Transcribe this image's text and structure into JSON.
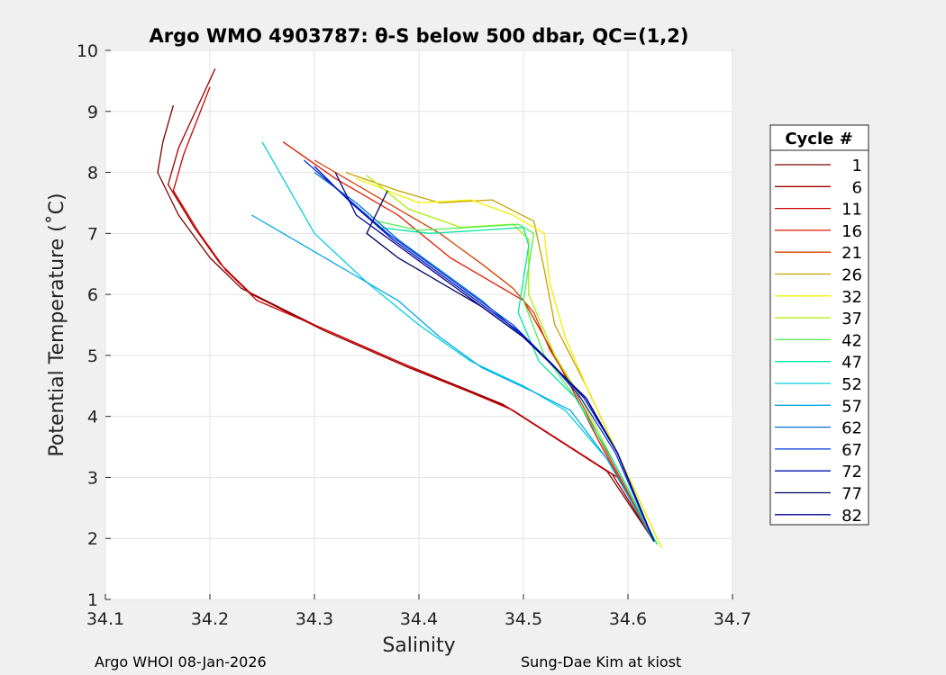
{
  "chart_data": {
    "type": "line",
    "title": "Argo WMO 4903787: θ-S below 500 dbar,  QC=(1,2)",
    "xlabel": "Salinity",
    "ylabel": "Potential Temperature (˚C)",
    "xlim": [
      34.1,
      34.7
    ],
    "ylim": [
      1,
      10
    ],
    "x_ticks": [
      "34.1",
      "34.2",
      "34.3",
      "34.4",
      "34.5",
      "34.6",
      "34.7"
    ],
    "y_ticks": [
      "1",
      "2",
      "3",
      "4",
      "5",
      "6",
      "7",
      "8",
      "9",
      "10"
    ],
    "grid": true,
    "legend_title": "Cycle #",
    "legend_position": "outside-right",
    "series": [
      {
        "name": "1",
        "color": "#7a0000",
        "x": [
          34.165,
          34.155,
          34.15,
          34.17,
          34.2,
          34.23,
          34.3,
          34.38,
          34.48,
          34.58,
          34.625
        ],
        "y": [
          9.1,
          8.5,
          8.0,
          7.3,
          6.6,
          6.1,
          5.5,
          4.9,
          4.2,
          3.1,
          1.95
        ]
      },
      {
        "name": "6",
        "color": "#a00000",
        "x": [
          34.205,
          34.17,
          34.16,
          34.185,
          34.21,
          34.24,
          34.31,
          34.39,
          34.485,
          34.585,
          34.625
        ],
        "y": [
          9.7,
          8.4,
          7.8,
          7.1,
          6.5,
          6.0,
          5.4,
          4.8,
          4.15,
          3.05,
          1.95
        ]
      },
      {
        "name": "11",
        "color": "#d00000",
        "x": [
          34.2,
          34.175,
          34.165,
          34.19,
          34.215,
          34.245,
          34.32,
          34.4,
          34.49,
          34.59,
          34.625
        ],
        "y": [
          9.4,
          8.3,
          7.7,
          7.0,
          6.4,
          5.9,
          5.35,
          4.75,
          4.1,
          3.0,
          1.95
        ]
      },
      {
        "name": "16",
        "color": "#e01800",
        "x": [
          34.27,
          34.32,
          34.38,
          34.43,
          34.47,
          34.5,
          34.52,
          34.545,
          34.575,
          34.625
        ],
        "y": [
          8.5,
          7.9,
          7.3,
          6.6,
          6.2,
          5.9,
          5.3,
          4.5,
          3.5,
          1.95
        ]
      },
      {
        "name": "21",
        "color": "#d44000",
        "x": [
          34.3,
          34.36,
          34.42,
          34.46,
          34.49,
          34.51,
          34.525,
          34.55,
          34.58,
          34.625
        ],
        "y": [
          8.2,
          7.6,
          7.0,
          6.5,
          6.1,
          5.7,
          5.1,
          4.4,
          3.4,
          1.95
        ]
      },
      {
        "name": "26",
        "color": "#c8a000",
        "x": [
          34.33,
          34.38,
          34.42,
          34.47,
          34.51,
          34.52,
          34.53,
          34.56,
          34.59,
          34.632
        ],
        "y": [
          8.0,
          7.7,
          7.5,
          7.55,
          7.2,
          6.4,
          5.5,
          4.5,
          3.4,
          1.85
        ]
      },
      {
        "name": "32",
        "color": "#f0f000",
        "x": [
          34.34,
          34.4,
          34.45,
          34.49,
          34.52,
          34.525,
          34.54,
          34.56,
          34.59,
          34.632
        ],
        "y": [
          7.9,
          7.5,
          7.55,
          7.3,
          7.0,
          6.2,
          5.3,
          4.5,
          3.4,
          1.85
        ]
      },
      {
        "name": "37",
        "color": "#a8f000",
        "x": [
          34.35,
          34.39,
          34.44,
          34.49,
          34.505,
          34.505,
          34.53,
          34.555,
          34.585,
          34.628
        ],
        "y": [
          7.95,
          7.4,
          7.1,
          7.15,
          6.9,
          6.0,
          5.0,
          4.3,
          3.3,
          1.9
        ]
      },
      {
        "name": "42",
        "color": "#50f050",
        "x": [
          34.36,
          34.4,
          34.45,
          34.495,
          34.51,
          34.5,
          34.52,
          34.55,
          34.585,
          34.628
        ],
        "y": [
          7.2,
          7.05,
          7.1,
          7.15,
          7.0,
          5.9,
          5.0,
          4.3,
          3.3,
          1.9
        ]
      },
      {
        "name": "47",
        "color": "#00e8a0",
        "x": [
          34.36,
          34.41,
          34.46,
          34.5,
          34.505,
          34.495,
          34.515,
          34.55,
          34.585,
          34.628
        ],
        "y": [
          7.1,
          7.0,
          7.05,
          7.1,
          6.8,
          5.7,
          4.9,
          4.3,
          3.3,
          1.9
        ]
      },
      {
        "name": "52",
        "color": "#00d0e0",
        "x": [
          34.25,
          34.27,
          34.3,
          34.35,
          34.4,
          34.45,
          34.5,
          34.54,
          34.58,
          34.625
        ],
        "y": [
          8.5,
          7.9,
          7.0,
          6.2,
          5.5,
          4.9,
          4.5,
          4.1,
          3.3,
          1.95
        ]
      },
      {
        "name": "57",
        "color": "#00a8e8",
        "x": [
          34.24,
          34.28,
          34.33,
          34.38,
          34.42,
          34.46,
          34.51,
          34.545,
          34.58,
          34.625
        ],
        "y": [
          7.3,
          6.9,
          6.4,
          5.9,
          5.3,
          4.8,
          4.4,
          4.1,
          3.3,
          1.95
        ]
      },
      {
        "name": "62",
        "color": "#0070d0",
        "x": [
          34.3,
          34.34,
          34.38,
          34.42,
          34.46,
          34.5,
          34.53,
          34.56,
          34.59,
          34.625
        ],
        "y": [
          8.0,
          7.5,
          6.9,
          6.4,
          5.9,
          5.3,
          4.8,
          4.3,
          3.4,
          1.95
        ]
      },
      {
        "name": "67",
        "color": "#0038e0",
        "x": [
          34.29,
          34.33,
          34.37,
          34.41,
          34.45,
          34.49,
          34.525,
          34.555,
          34.588,
          34.625
        ],
        "y": [
          8.2,
          7.6,
          7.0,
          6.5,
          6.0,
          5.5,
          4.9,
          4.3,
          3.4,
          1.95
        ]
      },
      {
        "name": "72",
        "color": "#0010b0",
        "x": [
          34.3,
          34.335,
          34.375,
          34.415,
          34.455,
          34.495,
          34.528,
          34.558,
          34.59,
          34.625
        ],
        "y": [
          8.1,
          7.5,
          6.9,
          6.4,
          5.9,
          5.4,
          4.85,
          4.3,
          3.4,
          1.95
        ]
      },
      {
        "name": "77",
        "color": "#000060",
        "x": [
          34.37,
          34.35,
          34.38,
          34.42,
          34.46,
          34.5,
          34.53,
          34.56,
          34.59,
          34.625
        ],
        "y": [
          7.7,
          7.0,
          6.6,
          6.2,
          5.8,
          5.3,
          4.8,
          4.3,
          3.4,
          1.95
        ]
      },
      {
        "name": "82",
        "color": "#000090",
        "x": [
          34.32,
          34.34,
          34.38,
          34.42,
          34.46,
          34.5,
          34.53,
          34.56,
          34.59,
          34.625
        ],
        "y": [
          8.0,
          7.3,
          6.8,
          6.3,
          5.8,
          5.3,
          4.8,
          4.3,
          3.4,
          1.95
        ]
      }
    ]
  },
  "footer": {
    "left": "Argo WHOI 08-Jan-2026",
    "right": "Sung-Dae Kim at kiost"
  }
}
